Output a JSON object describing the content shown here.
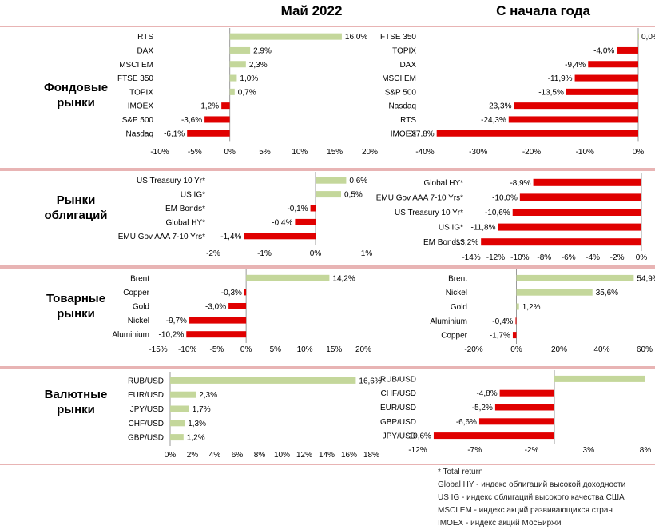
{
  "titles": {
    "left": "Май 2022",
    "right": "С начала года"
  },
  "section_labels": [
    "Фондовые рынки",
    "Рынки облигаций",
    "Товарные рынки",
    "Валютные рынки"
  ],
  "footnotes": [
    "* Total return",
    "Global HY - индекс облигаций высокой доходности",
    "US IG - индекс облигаций высокого качества США",
    "MSCI EM - индекс акций развивающихся стран",
    "IMOEX - индекс акций МосБиржи"
  ],
  "colors": {
    "positive": "#c4d79b",
    "negative": "#e00000",
    "band_border": "#e8b4b4"
  },
  "chart_data": [
    {
      "id": "equity-may",
      "type": "bar",
      "orientation": "horizontal",
      "categories": [
        "RTS",
        "DAX",
        "MSCI EM",
        "FTSE 350",
        "TOPIX",
        "IMOEX",
        "S&P 500",
        "Nasdaq"
      ],
      "values": [
        16.0,
        2.9,
        2.3,
        1.0,
        0.7,
        -1.2,
        -3.6,
        -6.1
      ],
      "labels": [
        "16,0%",
        "2,9%",
        "2,3%",
        "1,0%",
        "0,7%",
        "-1,2%",
        "-3,6%",
        "-6,1%"
      ],
      "xlim": [
        -10,
        20
      ],
      "ticks": [
        -10,
        -5,
        0,
        5,
        10,
        15,
        20
      ],
      "tick_labels": [
        "-10%",
        "-5%",
        "0%",
        "5%",
        "10%",
        "15%",
        "20%"
      ]
    },
    {
      "id": "equity-ytd",
      "type": "bar",
      "orientation": "horizontal",
      "categories": [
        "FTSE 350",
        "TOPIX",
        "DAX",
        "MSCI EM",
        "S&P 500",
        "Nasdaq",
        "RTS",
        "IMOEX"
      ],
      "values": [
        0.0,
        -4.0,
        -9.4,
        -11.9,
        -13.5,
        -23.3,
        -24.3,
        -37.8
      ],
      "labels": [
        "0,0%",
        "-4,0%",
        "-9,4%",
        "-11,9%",
        "-13,5%",
        "-23,3%",
        "-24,3%",
        "-37,8%"
      ],
      "xlim": [
        -40,
        0
      ],
      "ticks": [
        -40,
        -30,
        -20,
        -10,
        0
      ],
      "tick_labels": [
        "-40%",
        "-30%",
        "-20%",
        "-10%",
        "0%"
      ]
    },
    {
      "id": "bonds-may",
      "type": "bar",
      "orientation": "horizontal",
      "categories": [
        "US Treasury 10 Yr*",
        "US IG*",
        "EM Bonds*",
        "Global HY*",
        "EMU Gov AAA 7-10 Yrs*"
      ],
      "values": [
        0.6,
        0.5,
        -0.1,
        -0.4,
        -1.4
      ],
      "labels": [
        "0,6%",
        "0,5%",
        "-0,1%",
        "-0,4%",
        "-1,4%"
      ],
      "xlim": [
        -2,
        1
      ],
      "ticks": [
        -2,
        -1,
        0,
        1
      ],
      "tick_labels": [
        "-2%",
        "-1%",
        "0%",
        "1%"
      ]
    },
    {
      "id": "bonds-ytd",
      "type": "bar",
      "orientation": "horizontal",
      "categories": [
        "Global HY*",
        "EMU Gov AAA 7-10 Yrs*",
        "US Treasury 10 Yr*",
        "US IG*",
        "EM Bonds*"
      ],
      "values": [
        -8.9,
        -10.0,
        -10.6,
        -11.8,
        -13.2
      ],
      "labels": [
        "-8,9%",
        "-10,0%",
        "-10,6%",
        "-11,8%",
        "-13,2%"
      ],
      "xlim": [
        -14,
        0
      ],
      "ticks": [
        -14,
        -12,
        -10,
        -8,
        -6,
        -4,
        -2,
        0
      ],
      "tick_labels": [
        "-14%",
        "-12%",
        "-10%",
        "-8%",
        "-6%",
        "-4%",
        "-2%",
        "0%"
      ]
    },
    {
      "id": "commodities-may",
      "type": "bar",
      "orientation": "horizontal",
      "categories": [
        "Brent",
        "Copper",
        "Gold",
        "Nickel",
        "Aluminium"
      ],
      "values": [
        14.2,
        -0.3,
        -3.0,
        -9.7,
        -10.2
      ],
      "labels": [
        "14,2%",
        "-0,3%",
        "-3,0%",
        "-9,7%",
        "-10,2%"
      ],
      "xlim": [
        -15,
        20
      ],
      "ticks": [
        -15,
        -10,
        -5,
        0,
        5,
        10,
        15,
        20
      ],
      "tick_labels": [
        "-15%",
        "-10%",
        "-5%",
        "0%",
        "5%",
        "10%",
        "15%",
        "20%"
      ]
    },
    {
      "id": "commodities-ytd",
      "type": "bar",
      "orientation": "horizontal",
      "categories": [
        "Brent",
        "Nickel",
        "Gold",
        "Aluminium",
        "Copper"
      ],
      "values": [
        54.9,
        35.6,
        1.2,
        -0.4,
        -1.7
      ],
      "labels": [
        "54,9%",
        "35,6%",
        "1,2%",
        "-0,4%",
        "-1,7%"
      ],
      "xlim": [
        -20,
        60
      ],
      "ticks": [
        -20,
        0,
        20,
        40,
        60
      ],
      "tick_labels": [
        "-20%",
        "0%",
        "20%",
        "40%",
        "60%"
      ]
    },
    {
      "id": "fx-may",
      "type": "bar",
      "orientation": "horizontal",
      "categories": [
        "RUB/USD",
        "EUR/USD",
        "JPY/USD",
        "CHF/USD",
        "GBP/USD"
      ],
      "values": [
        16.6,
        2.3,
        1.7,
        1.3,
        1.2
      ],
      "labels": [
        "16,6%",
        "2,3%",
        "1,7%",
        "1,3%",
        "1,2%"
      ],
      "xlim": [
        0,
        18
      ],
      "ticks": [
        0,
        2,
        4,
        6,
        8,
        10,
        12,
        14,
        16,
        18
      ],
      "tick_labels": [
        "0%",
        "2%",
        "4%",
        "6%",
        "8%",
        "10%",
        "12%",
        "14%",
        "16%",
        "18%"
      ]
    },
    {
      "id": "fx-ytd",
      "type": "bar",
      "orientation": "horizontal",
      "categories": [
        "RUB/USD",
        "CHF/USD",
        "EUR/USD",
        "GBP/USD",
        "JPY/USD"
      ],
      "values": [
        8.0,
        -4.8,
        -5.2,
        -6.6,
        -10.6
      ],
      "labels": [
        "",
        "-4,8%",
        "-5,2%",
        "-6,6%",
        "-10,6%"
      ],
      "xlim": [
        -12,
        8
      ],
      "ticks": [
        -12,
        -7,
        -2,
        3,
        8
      ],
      "tick_labels": [
        "-12%",
        "-7%",
        "-2%",
        "3%",
        "8%"
      ]
    }
  ]
}
